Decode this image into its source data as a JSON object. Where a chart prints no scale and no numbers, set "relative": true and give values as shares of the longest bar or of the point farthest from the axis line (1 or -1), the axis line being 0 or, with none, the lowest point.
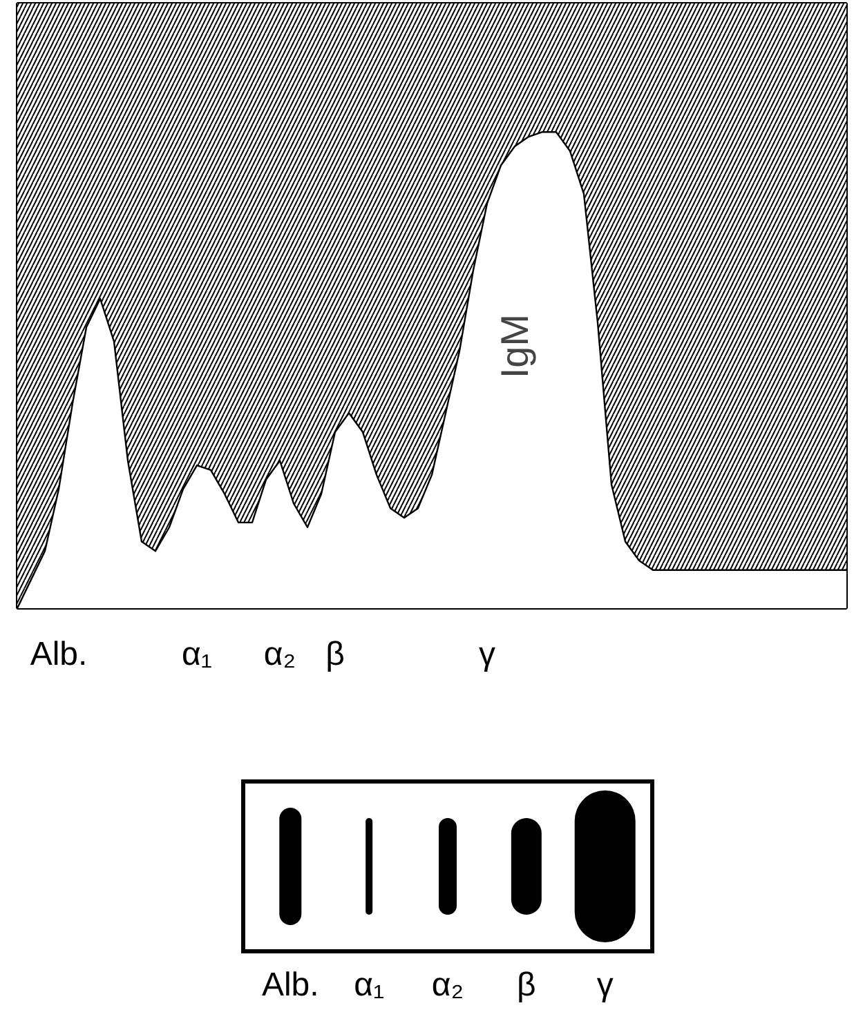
{
  "chart_data": [
    {
      "type": "area",
      "relative": true,
      "categories": [
        null,
        null,
        null,
        "Alb.",
        null,
        null,
        null,
        null,
        null,
        null,
        null,
        null,
        null,
        "α₁",
        null,
        null,
        null,
        null,
        null,
        "α₂",
        null,
        null,
        null,
        "β",
        null,
        null,
        null,
        null,
        null,
        null,
        null,
        null,
        null,
        null,
        "γ",
        null,
        null,
        null,
        null,
        null,
        null,
        null,
        null,
        null,
        null,
        null,
        null,
        null,
        null,
        null,
        null,
        null,
        null,
        null,
        null,
        null,
        null,
        null,
        null,
        null,
        null
      ],
      "series": [
        {
          "color": "#000000",
          "values": [
            0,
            0.06,
            0.12,
            0.25,
            0.43,
            0.59,
            0.65,
            0.56,
            0.31,
            0.14,
            0.12,
            0.17,
            0.25,
            0.3,
            0.29,
            0.24,
            0.18,
            0.18,
            0.27,
            0.31,
            0.22,
            0.17,
            0.24,
            0.37,
            0.41,
            0.37,
            0.28,
            0.21,
            0.19,
            0.21,
            0.28,
            0.41,
            0.54,
            0.71,
            0.85,
            0.93,
            0.97,
            0.99,
            1.0,
            1.0,
            0.96,
            0.87,
            0.6,
            0.26,
            0.14,
            0.1,
            0.08,
            0.08,
            0.08,
            0.08,
            0.08,
            0.08,
            0.08,
            0.08,
            0.08,
            0.08,
            0.08,
            0.08,
            0.08,
            0.08,
            0.08
          ]
        }
      ],
      "annotations": [
        "IgM"
      ]
    },
    {
      "type": "other",
      "categories": [
        "Alb.",
        "α₁",
        "α₂",
        "β",
        "γ"
      ]
    }
  ]
}
